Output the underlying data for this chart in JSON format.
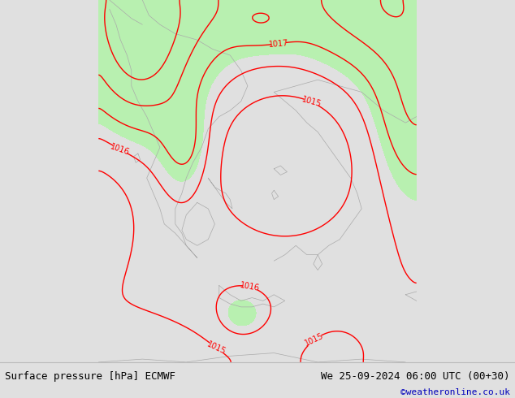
{
  "title_left": "Surface pressure [hPa] ECMWF",
  "title_right": "We 25-09-2024 06:00 UTC (00+30)",
  "credit": "©weatheronline.co.uk",
  "bg_color": "#e0e0e0",
  "land_color": "#b8f0b0",
  "sea_color": "#e0e0e0",
  "isobar_color": "#ff0000",
  "coast_color": "#aaaaaa",
  "text_color": "#000000",
  "credit_color": "#0000bb",
  "figsize": [
    6.34,
    4.9
  ],
  "dpi": 100,
  "font_size_bottom": 9,
  "font_size_credit": 8
}
